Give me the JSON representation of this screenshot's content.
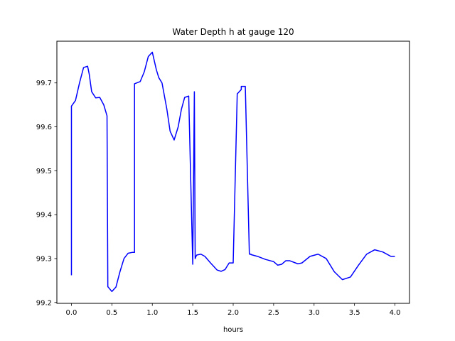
{
  "chart_data": {
    "type": "line",
    "title": "Water Depth h at gauge 120",
    "xlabel": "hours",
    "ylabel": "",
    "xlim": [
      -0.18,
      4.18
    ],
    "ylim": [
      99.198,
      99.795
    ],
    "xticks": [
      0.0,
      0.5,
      1.0,
      1.5,
      2.0,
      2.5,
      3.0,
      3.5,
      4.0
    ],
    "xtick_labels": [
      "0.0",
      "0.5",
      "1.0",
      "1.5",
      "2.0",
      "2.5",
      "3.0",
      "3.5",
      "4.0"
    ],
    "yticks": [
      99.2,
      99.3,
      99.4,
      99.5,
      99.6,
      99.7
    ],
    "ytick_labels": [
      "99.2",
      "99.3",
      "99.4",
      "99.5",
      "99.6",
      "99.7"
    ],
    "grid": false,
    "series": [
      {
        "name": "h",
        "color": "#0000ff",
        "x": [
          0.0,
          0.0,
          0.05,
          0.1,
          0.15,
          0.2,
          0.22,
          0.25,
          0.3,
          0.35,
          0.4,
          0.44,
          0.45,
          0.45,
          0.5,
          0.55,
          0.6,
          0.65,
          0.7,
          0.75,
          0.78,
          0.78,
          0.85,
          0.9,
          0.95,
          1.0,
          1.05,
          1.08,
          1.12,
          1.18,
          1.22,
          1.27,
          1.32,
          1.36,
          1.4,
          1.45,
          1.5,
          1.5,
          1.52,
          1.53,
          1.53,
          1.54,
          1.55,
          1.6,
          1.65,
          1.72,
          1.8,
          1.85,
          1.9,
          1.95,
          2.0,
          2.05,
          2.1,
          2.1,
          2.15,
          2.2,
          2.22,
          2.22,
          2.3,
          2.4,
          2.5,
          2.55,
          2.6,
          2.65,
          2.7,
          2.8,
          2.85,
          2.95,
          3.05,
          3.15,
          3.25,
          3.35,
          3.45,
          3.55,
          3.65,
          3.75,
          3.85,
          3.95,
          4.0
        ],
        "y": [
          99.262,
          99.647,
          99.66,
          99.7,
          99.735,
          99.738,
          99.72,
          99.68,
          99.666,
          99.667,
          99.65,
          99.625,
          99.236,
          99.236,
          99.225,
          99.235,
          99.27,
          99.3,
          99.312,
          99.314,
          99.314,
          99.698,
          99.703,
          99.725,
          99.76,
          99.77,
          99.73,
          99.712,
          99.7,
          99.64,
          99.59,
          99.57,
          99.6,
          99.64,
          99.667,
          99.67,
          99.287,
          99.287,
          99.68,
          99.3,
          99.3,
          99.305,
          99.308,
          99.31,
          99.305,
          99.29,
          99.274,
          99.271,
          99.275,
          99.29,
          99.29,
          99.675,
          99.685,
          99.692,
          99.692,
          99.31,
          99.31,
          99.309,
          99.305,
          99.298,
          99.293,
          99.285,
          99.287,
          99.295,
          99.295,
          99.288,
          99.29,
          99.305,
          99.31,
          99.3,
          99.27,
          99.252,
          99.258,
          99.285,
          99.31,
          99.32,
          99.315,
          99.305,
          99.305
        ]
      }
    ]
  }
}
